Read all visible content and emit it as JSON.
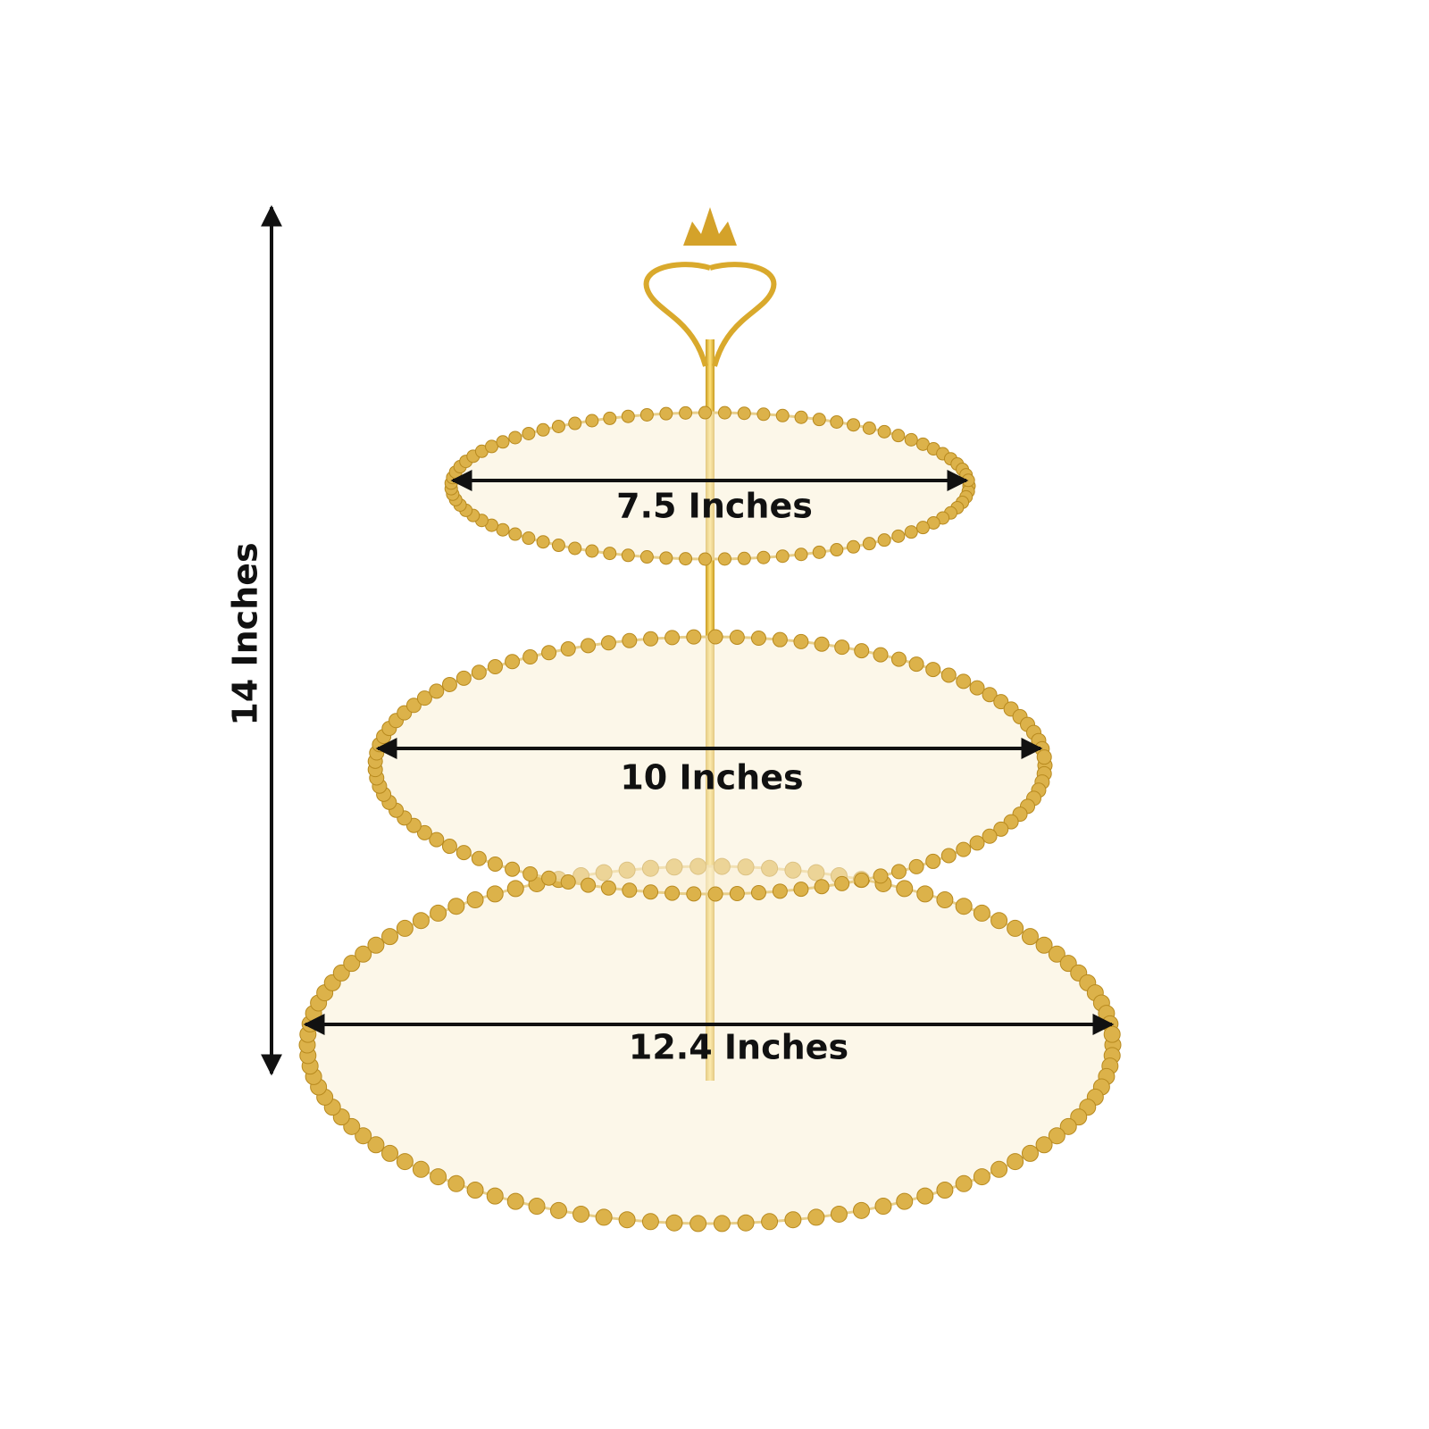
{
  "height_label": "14 Inches",
  "tiers": [
    {
      "label": "7.5 Inches"
    },
    {
      "label": "10 Inches"
    },
    {
      "label": "12.4 Inches"
    }
  ]
}
